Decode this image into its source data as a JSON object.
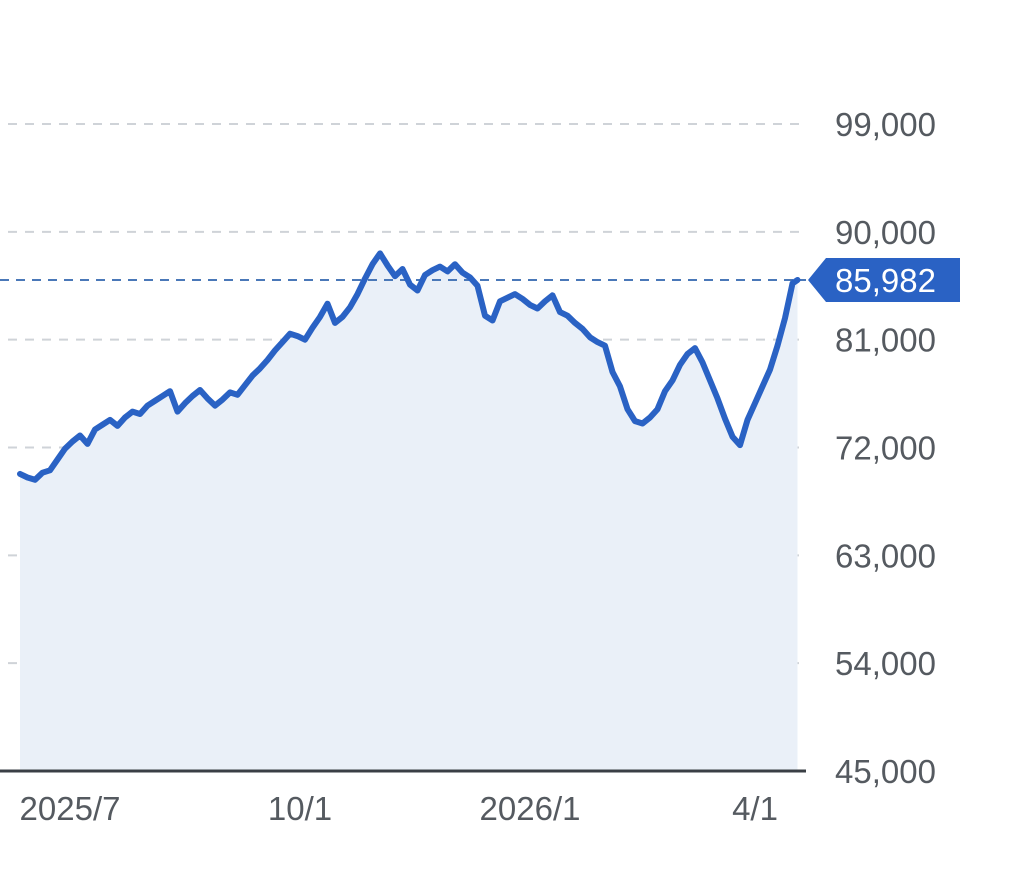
{
  "chart_data": {
    "type": "area",
    "y_ticks": [
      45000,
      54000,
      63000,
      72000,
      81000,
      90000,
      99000
    ],
    "y_tick_labels": [
      "45,000",
      "54,000",
      "63,000",
      "72,000",
      "81,000",
      "90,000",
      "99,000"
    ],
    "ylim": [
      45000,
      99000
    ],
    "x_tick_labels": [
      "2025/7",
      "10/1",
      "2026/1",
      "4/1"
    ],
    "x_tick_dates": [
      "2025-07-01",
      "2025-10-01",
      "2026-01-01",
      "2026-04-01"
    ],
    "grid": true,
    "current_value": 85982,
    "current_value_label": "85,982",
    "color": "#2a62c4",
    "fill_color": "#eaf0f8",
    "series": [
      {
        "points": [
          [
            "2025-06-11",
            69800
          ],
          [
            "2025-06-14",
            69500
          ],
          [
            "2025-06-17",
            69300
          ],
          [
            "2025-06-20",
            69900
          ],
          [
            "2025-06-23",
            70100
          ],
          [
            "2025-06-26",
            71000
          ],
          [
            "2025-06-29",
            71900
          ],
          [
            "2025-07-02",
            72500
          ],
          [
            "2025-07-05",
            73000
          ],
          [
            "2025-07-08",
            72300
          ],
          [
            "2025-07-11",
            73500
          ],
          [
            "2025-07-14",
            73900
          ],
          [
            "2025-07-17",
            74300
          ],
          [
            "2025-07-20",
            73800
          ],
          [
            "2025-07-23",
            74500
          ],
          [
            "2025-07-26",
            75000
          ],
          [
            "2025-07-29",
            74800
          ],
          [
            "2025-08-01",
            75500
          ],
          [
            "2025-08-04",
            75900
          ],
          [
            "2025-08-07",
            76300
          ],
          [
            "2025-08-10",
            76700
          ],
          [
            "2025-08-13",
            75000
          ],
          [
            "2025-08-16",
            75700
          ],
          [
            "2025-08-19",
            76300
          ],
          [
            "2025-08-22",
            76800
          ],
          [
            "2025-08-25",
            76100
          ],
          [
            "2025-08-28",
            75500
          ],
          [
            "2025-08-31",
            76000
          ],
          [
            "2025-09-03",
            76600
          ],
          [
            "2025-09-06",
            76400
          ],
          [
            "2025-09-09",
            77200
          ],
          [
            "2025-09-12",
            78000
          ],
          [
            "2025-09-15",
            78600
          ],
          [
            "2025-09-18",
            79300
          ],
          [
            "2025-09-21",
            80100
          ],
          [
            "2025-09-24",
            80800
          ],
          [
            "2025-09-27",
            81500
          ],
          [
            "2025-09-30",
            81300
          ],
          [
            "2025-10-03",
            81000
          ],
          [
            "2025-10-06",
            82000
          ],
          [
            "2025-10-09",
            82900
          ],
          [
            "2025-10-12",
            84000
          ],
          [
            "2025-10-15",
            82400
          ],
          [
            "2025-10-18",
            82900
          ],
          [
            "2025-10-21",
            83700
          ],
          [
            "2025-10-24",
            84800
          ],
          [
            "2025-10-27",
            86100
          ],
          [
            "2025-10-30",
            87300
          ],
          [
            "2025-11-02",
            88200
          ],
          [
            "2025-11-05",
            87200
          ],
          [
            "2025-11-08",
            86300
          ],
          [
            "2025-11-11",
            86900
          ],
          [
            "2025-11-14",
            85600
          ],
          [
            "2025-11-17",
            85100
          ],
          [
            "2025-11-20",
            86400
          ],
          [
            "2025-11-23",
            86800
          ],
          [
            "2025-11-26",
            87100
          ],
          [
            "2025-11-29",
            86700
          ],
          [
            "2025-12-02",
            87300
          ],
          [
            "2025-12-05",
            86600
          ],
          [
            "2025-12-08",
            86200
          ],
          [
            "2025-12-11",
            85500
          ],
          [
            "2025-12-14",
            83000
          ],
          [
            "2025-12-17",
            82600
          ],
          [
            "2025-12-20",
            84200
          ],
          [
            "2025-12-23",
            84500
          ],
          [
            "2025-12-26",
            84800
          ],
          [
            "2025-12-29",
            84400
          ],
          [
            "2026-01-01",
            83900
          ],
          [
            "2026-01-04",
            83600
          ],
          [
            "2026-01-07",
            84200
          ],
          [
            "2026-01-10",
            84700
          ],
          [
            "2026-01-13",
            83300
          ],
          [
            "2026-01-16",
            83000
          ],
          [
            "2026-01-19",
            82400
          ],
          [
            "2026-01-22",
            81900
          ],
          [
            "2026-01-25",
            81200
          ],
          [
            "2026-01-28",
            80800
          ],
          [
            "2026-01-31",
            80500
          ],
          [
            "2026-02-03",
            78300
          ],
          [
            "2026-02-06",
            77100
          ],
          [
            "2026-02-09",
            75200
          ],
          [
            "2026-02-12",
            74200
          ],
          [
            "2026-02-15",
            74000
          ],
          [
            "2026-02-18",
            74500
          ],
          [
            "2026-02-21",
            75200
          ],
          [
            "2026-02-24",
            76700
          ],
          [
            "2026-02-27",
            77600
          ],
          [
            "2026-03-02",
            78900
          ],
          [
            "2026-03-05",
            79800
          ],
          [
            "2026-03-08",
            80300
          ],
          [
            "2026-03-11",
            79100
          ],
          [
            "2026-03-14",
            77600
          ],
          [
            "2026-03-17",
            76100
          ],
          [
            "2026-03-20",
            74400
          ],
          [
            "2026-03-23",
            72900
          ],
          [
            "2026-03-26",
            72200
          ],
          [
            "2026-03-29",
            74300
          ],
          [
            "2026-04-01",
            75700
          ],
          [
            "2026-04-04",
            77100
          ],
          [
            "2026-04-07",
            78500
          ],
          [
            "2026-04-10",
            80500
          ],
          [
            "2026-04-13",
            82800
          ],
          [
            "2026-04-16",
            85700
          ],
          [
            "2026-04-18",
            85982
          ]
        ]
      }
    ]
  }
}
